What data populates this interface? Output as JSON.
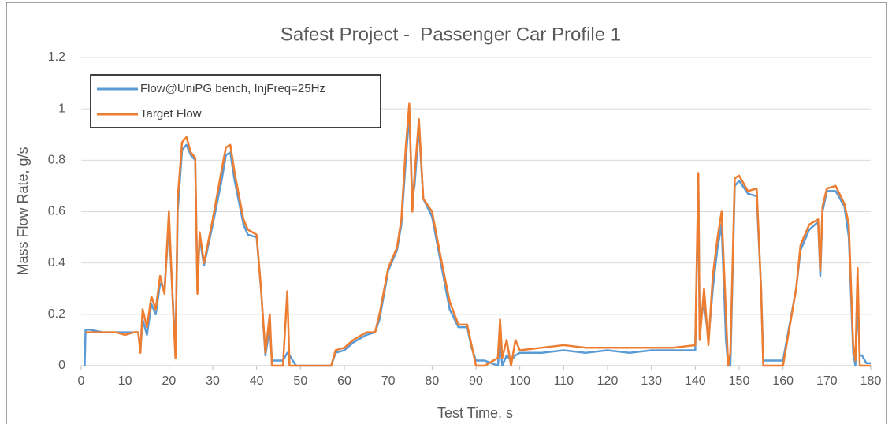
{
  "chart_data": {
    "type": "line",
    "title": "Safest Project -  Passenger Car Profile 1",
    "x_label": "Test Time, s",
    "y_label": "Mass Flow Rate, g/s",
    "xlim": [
      0,
      180
    ],
    "xticks": [
      0,
      10,
      20,
      30,
      40,
      50,
      60,
      70,
      80,
      90,
      100,
      110,
      120,
      130,
      140,
      150,
      160,
      170,
      180
    ],
    "ylim": [
      0,
      1.2
    ],
    "yticks": [
      0,
      0.2,
      0.4,
      0.6,
      0.8,
      1,
      1.2
    ],
    "grid": true,
    "legend": "upper left",
    "x": [
      0.8,
      1,
      2,
      5,
      8,
      10,
      12,
      13,
      13.5,
      14,
      15,
      16,
      17,
      18,
      19,
      20,
      21,
      21.5,
      22,
      23,
      24,
      25,
      26,
      26.5,
      27,
      28,
      30,
      32,
      33,
      34,
      35,
      37,
      38,
      40,
      41,
      42,
      43,
      43.5,
      46,
      47,
      47.5,
      49,
      57,
      58,
      60,
      62,
      65,
      67,
      68,
      70,
      72,
      73,
      74,
      74.8,
      75.5,
      76,
      77,
      78,
      80,
      82,
      84,
      86,
      88,
      89,
      90,
      92,
      95,
      95.5,
      96,
      97,
      98,
      99,
      100,
      105,
      110,
      115,
      120,
      125,
      130,
      135,
      140,
      140.7,
      141,
      142,
      143,
      144,
      145,
      146,
      147,
      147.5,
      148,
      149,
      150,
      152,
      154,
      155,
      155.5,
      158,
      160,
      163,
      164,
      166,
      168,
      168.5,
      169,
      170,
      172,
      174,
      175,
      176,
      176.5,
      177,
      177.5,
      178,
      179,
      180
    ],
    "series": [
      {
        "name": "Flow@UniPG bench, InjFreq=25Hz",
        "color": "#5b9bd5",
        "values": [
          0,
          0.14,
          0.14,
          0.13,
          0.13,
          0.13,
          0.13,
          0.13,
          0.06,
          0.18,
          0.12,
          0.24,
          0.2,
          0.32,
          0.3,
          0.55,
          0.22,
          0.05,
          0.6,
          0.84,
          0.86,
          0.82,
          0.8,
          0.3,
          0.5,
          0.39,
          0.55,
          0.72,
          0.82,
          0.83,
          0.72,
          0.55,
          0.51,
          0.5,
          0.3,
          0.04,
          0.15,
          0.02,
          0.02,
          0.05,
          0.04,
          0,
          0,
          0.05,
          0.06,
          0.09,
          0.12,
          0.13,
          0.18,
          0.37,
          0.45,
          0.55,
          0.8,
          0.98,
          0.65,
          0.7,
          0.93,
          0.65,
          0.58,
          0.4,
          0.22,
          0.15,
          0.15,
          0.07,
          0.02,
          0.02,
          0,
          0.1,
          0,
          0.04,
          0.02,
          0.04,
          0.05,
          0.05,
          0.06,
          0.05,
          0.06,
          0.05,
          0.06,
          0.06,
          0.06,
          0.7,
          0.15,
          0.25,
          0.1,
          0.3,
          0.45,
          0.55,
          0.1,
          0,
          0,
          0.7,
          0.72,
          0.67,
          0.66,
          0.3,
          0.02,
          0.02,
          0.02,
          0.3,
          0.45,
          0.53,
          0.56,
          0.35,
          0.6,
          0.68,
          0.68,
          0.62,
          0.5,
          0.05,
          0,
          0.25,
          0.04,
          0.04,
          0.01,
          0.01
        ]
      },
      {
        "name": "Target Flow",
        "color": "#ed7d31",
        "values": [
          null,
          0.13,
          0.13,
          0.13,
          0.13,
          0.12,
          0.13,
          0.13,
          0.05,
          0.22,
          0.15,
          0.27,
          0.22,
          0.35,
          0.28,
          0.6,
          0.2,
          0.03,
          0.65,
          0.87,
          0.89,
          0.83,
          0.81,
          0.28,
          0.52,
          0.4,
          0.57,
          0.76,
          0.85,
          0.86,
          0.75,
          0.57,
          0.53,
          0.51,
          0.3,
          0.05,
          0.2,
          0,
          0,
          0.29,
          0,
          0,
          0,
          0.06,
          0.07,
          0.1,
          0.13,
          0.13,
          0.2,
          0.38,
          0.46,
          0.57,
          0.85,
          1.02,
          0.6,
          0.74,
          0.96,
          0.65,
          0.6,
          0.42,
          0.25,
          0.16,
          0.16,
          0.08,
          0,
          0,
          0.03,
          0.18,
          0.03,
          0.1,
          0,
          0.1,
          0.06,
          0.07,
          0.08,
          0.07,
          0.07,
          0.07,
          0.07,
          0.07,
          0.08,
          0.75,
          0.1,
          0.3,
          0.08,
          0.35,
          0.49,
          0.6,
          0.2,
          0,
          0.05,
          0.73,
          0.74,
          0.68,
          0.69,
          0.3,
          0,
          0,
          0,
          0.3,
          0.47,
          0.55,
          0.57,
          0.37,
          0.62,
          0.69,
          0.7,
          0.63,
          0.55,
          0.08,
          0.02,
          0.38,
          0,
          0,
          0,
          0
        ]
      }
    ]
  }
}
